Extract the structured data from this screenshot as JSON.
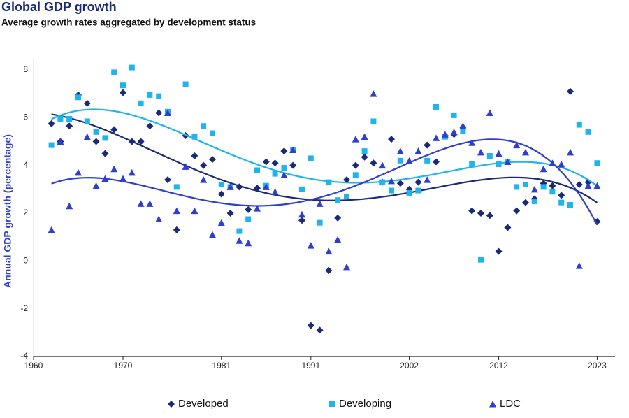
{
  "chart_data": {
    "type": "scatter",
    "title": "Global GDP growth",
    "subtitle": "Average growth rates aggregated by development status",
    "y_label": "Annual GDP growth (percentage)",
    "x": [
      1962,
      1963,
      1964,
      1965,
      1966,
      1967,
      1968,
      1969,
      1970,
      1971,
      1972,
      1973,
      1974,
      1975,
      1976,
      1977,
      1978,
      1979,
      1980,
      1981,
      1982,
      1983,
      1984,
      1985,
      1986,
      1987,
      1988,
      1989,
      1990,
      1991,
      1992,
      1993,
      1994,
      1995,
      1996,
      1997,
      1998,
      1999,
      2000,
      2001,
      2002,
      2003,
      2004,
      2005,
      2006,
      2007,
      2008,
      2009,
      2010,
      2011,
      2012,
      2013,
      2014,
      2015,
      2016,
      2017,
      2018,
      2019,
      2020,
      2021,
      2022,
      2023
    ],
    "series": [
      {
        "name": "Developed",
        "color": "#1b2a78",
        "marker": "diamond",
        "values": [
          5.75,
          5.0,
          5.65,
          6.95,
          6.6,
          5.0,
          4.5,
          5.5,
          7.05,
          5.0,
          5.0,
          5.65,
          6.2,
          3.4,
          1.3,
          5.25,
          4.4,
          4.0,
          4.25,
          2.8,
          2.0,
          3.1,
          2.15,
          3.05,
          4.15,
          4.1,
          4.6,
          4.0,
          1.7,
          -2.7,
          -2.9,
          -0.4,
          1.8,
          3.4,
          4.0,
          4.35,
          4.1,
          3.3,
          5.1,
          3.25,
          3.0,
          3.3,
          4.85,
          4.15,
          5.25,
          5.3,
          5.6,
          2.1,
          2.0,
          1.9,
          0.4,
          1.4,
          2.1,
          2.45,
          2.6,
          3.25,
          3.15,
          2.75,
          7.1,
          3.2,
          3.3,
          1.65
        ]
      },
      {
        "name": "Developing",
        "color": "#1eb4ec",
        "marker": "square",
        "values": [
          4.85,
          5.95,
          5.95,
          6.85,
          5.85,
          5.4,
          5.15,
          7.9,
          7.35,
          8.1,
          6.6,
          6.95,
          6.9,
          6.25,
          3.1,
          7.4,
          5.2,
          5.65,
          5.35,
          3.2,
          3.1,
          1.25,
          1.75,
          3.8,
          3.15,
          3.65,
          3.9,
          4.65,
          3.0,
          4.3,
          1.6,
          3.3,
          2.55,
          2.7,
          3.6,
          4.6,
          5.85,
          3.3,
          2.95,
          4.2,
          2.85,
          2.95,
          4.2,
          6.45,
          5.2,
          6.1,
          5.45,
          4.05,
          0.05,
          4.4,
          4.05,
          4.15,
          3.1,
          3.2,
          2.5,
          3.1,
          2.9,
          2.45,
          2.35,
          5.7,
          5.4,
          4.1
        ]
      },
      {
        "name": "LDC",
        "color": "#2e3fcf",
        "marker": "triangle",
        "values": [
          1.3,
          5.0,
          2.3,
          3.7,
          5.2,
          3.15,
          3.45,
          3.85,
          3.45,
          3.7,
          2.4,
          2.4,
          1.75,
          6.2,
          2.1,
          3.95,
          2.1,
          3.4,
          1.1,
          1.6,
          3.1,
          0.85,
          0.75,
          2.2,
          3.1,
          2.9,
          3.6,
          4.65,
          1.95,
          0.65,
          2.4,
          0.4,
          0.9,
          -0.25,
          5.1,
          5.2,
          7.0,
          4.0,
          3.35,
          4.6,
          4.2,
          4.6,
          3.4,
          5.15,
          5.3,
          5.4,
          5.65,
          4.95,
          4.55,
          6.2,
          4.5,
          4.15,
          4.85,
          4.55,
          3.0,
          3.85,
          4.1,
          4.05,
          4.55,
          -0.2,
          3.15,
          3.15
        ]
      }
    ],
    "xlim": [
      1960,
      2025
    ],
    "xticks": [
      1960,
      1970,
      1981,
      1991,
      2002,
      2012,
      2023
    ],
    "ylim": [
      -4,
      8
    ],
    "yticks": [
      -4,
      -2,
      0,
      2,
      4,
      6,
      8
    ],
    "trendline_order": 4,
    "grid": false,
    "legend": "bottom"
  }
}
